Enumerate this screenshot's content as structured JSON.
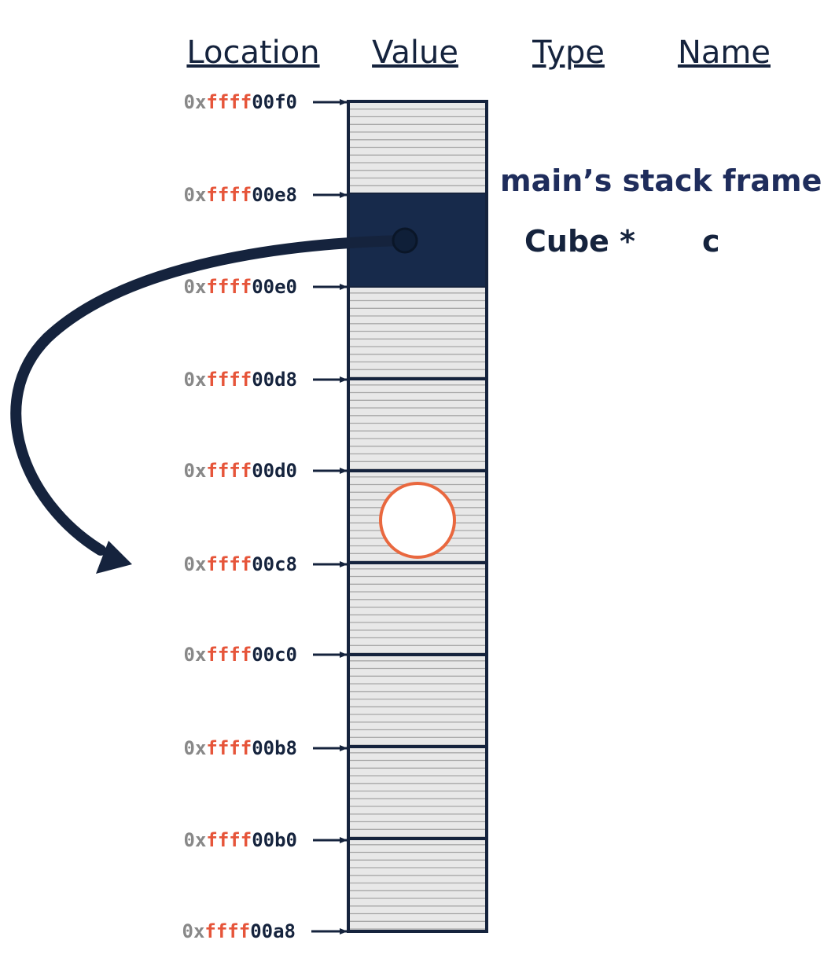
{
  "headers": {
    "location": "Location",
    "value": "Value",
    "type": "Type",
    "name": "Name"
  },
  "addresses": [
    {
      "prefix": "0x",
      "mid": "ffff",
      "suffix": "00f0"
    },
    {
      "prefix": "0x",
      "mid": "ffff",
      "suffix": "00e8"
    },
    {
      "prefix": "0x",
      "mid": "ffff",
      "suffix": "00e0"
    },
    {
      "prefix": "0x",
      "mid": "ffff",
      "suffix": "00d8"
    },
    {
      "prefix": "0x",
      "mid": "ffff",
      "suffix": "00d0"
    },
    {
      "prefix": "0x",
      "mid": "ffff",
      "suffix": "00c8"
    },
    {
      "prefix": "0x",
      "mid": "ffff",
      "suffix": "00c0"
    },
    {
      "prefix": "0x",
      "mid": "ffff",
      "suffix": "00b8"
    },
    {
      "prefix": "0x",
      "mid": "ffff",
      "suffix": "00b0"
    },
    {
      "prefix": "0x",
      "mid": "ffff",
      "suffix": "00a8"
    }
  ],
  "frame_label": "main’s stack frame",
  "variable": {
    "type": "Cube *",
    "name": "c"
  },
  "colors": {
    "dark": "#15233d",
    "highlight": "#172a4b",
    "prefix": "#888888",
    "accent": "#e6553a",
    "memory_fill": "#e8e8e8",
    "memory_lines": "#a8a8a8",
    "circle_stroke": "#e9683f"
  }
}
